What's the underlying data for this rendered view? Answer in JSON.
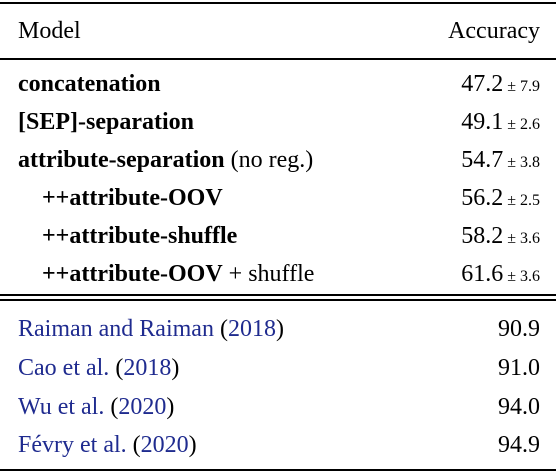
{
  "header": {
    "model": "Model",
    "accuracy": "Accuracy"
  },
  "ours": [
    {
      "bold": "concatenation",
      "suffix": "",
      "value": "47.2",
      "pm": "± 7.9",
      "indent": false
    },
    {
      "bold": "[SEP]-separation",
      "suffix": "",
      "value": "49.1",
      "pm": "± 2.6",
      "indent": false
    },
    {
      "bold": "attribute-separation",
      "suffix": " (no reg.)",
      "value": "54.7",
      "pm": "± 3.8",
      "indent": false
    },
    {
      "bold": "++attribute-OOV",
      "suffix": "",
      "value": "56.2",
      "pm": "± 2.5",
      "indent": true
    },
    {
      "bold": "++attribute-shuffle",
      "suffix": "",
      "value": "58.2",
      "pm": "± 3.6",
      "indent": true
    },
    {
      "bold": "++attribute-OOV",
      "suffix": " + shuffle",
      "value": "61.6",
      "pm": "± 3.6",
      "indent": true
    }
  ],
  "prior": [
    {
      "authors": "Raiman and Raiman",
      "year": "2018",
      "value": "90.9"
    },
    {
      "authors": "Cao et al.",
      "year": "2018",
      "value": "91.0"
    },
    {
      "authors": "Wu et al.",
      "year": "2020",
      "value": "94.0"
    },
    {
      "authors": "Févry et al.",
      "year": "2020",
      "value": "94.9"
    }
  ]
}
